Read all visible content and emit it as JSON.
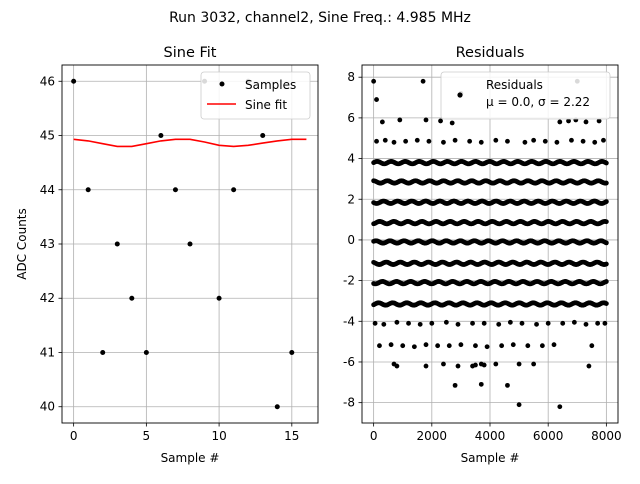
{
  "figure": {
    "suptitle": "Run 3032, channel2, Sine Freq.: 4.985 MHz"
  },
  "chart_data": [
    {
      "type": "scatter",
      "title": "Sine Fit",
      "xlabel": "Sample #",
      "ylabel": "ADC Counts",
      "xlim": [
        -0.8,
        16.8
      ],
      "ylim": [
        39.7,
        46.3
      ],
      "xticks": [
        0,
        5,
        10,
        15
      ],
      "yticks": [
        40,
        41,
        42,
        43,
        44,
        45,
        46
      ],
      "grid": true,
      "legend_position": "top-right",
      "series": [
        {
          "name": "Samples",
          "kind": "scatter",
          "color": "#000000",
          "x": [
            0,
            1,
            2,
            3,
            4,
            5,
            6,
            7,
            8,
            9,
            10,
            11,
            12,
            13,
            14,
            15
          ],
          "y": [
            46,
            44,
            41,
            43,
            42,
            41,
            45,
            44,
            43,
            46,
            42,
            44,
            46,
            45,
            40,
            41
          ]
        },
        {
          "name": "Sine fit",
          "kind": "line",
          "color": "#ff0000",
          "x": [
            0,
            1,
            2,
            3,
            4,
            5,
            6,
            7,
            8,
            9,
            10,
            11,
            12,
            13,
            14,
            15,
            16
          ],
          "y": [
            44.93,
            44.9,
            44.85,
            44.8,
            44.8,
            44.85,
            44.9,
            44.93,
            44.93,
            44.88,
            44.82,
            44.8,
            44.82,
            44.86,
            44.9,
            44.93,
            44.93
          ]
        }
      ]
    },
    {
      "type": "scatter",
      "title": "Residuals",
      "xlabel": "Sample #",
      "xlim": [
        -400,
        8400
      ],
      "ylim": [
        -9,
        8.6
      ],
      "xticks": [
        0,
        2000,
        4000,
        6000,
        8000
      ],
      "yticks": [
        -8,
        -6,
        -4,
        -2,
        0,
        2,
        4,
        6,
        8
      ],
      "grid": true,
      "legend_position": "top-right",
      "series": [
        {
          "name": "Residuals",
          "stats_label": "μ = 0.0, σ = 2.22",
          "color": "#000000",
          "bands": [
            {
              "y": 3.8,
              "x_start": 0,
              "x_end": 8000
            },
            {
              "y": 2.85,
              "x_start": 0,
              "x_end": 8000
            },
            {
              "y": 1.85,
              "x_start": 0,
              "x_end": 8000
            },
            {
              "y": 0.85,
              "x_start": 0,
              "x_end": 8000
            },
            {
              "y": -0.1,
              "x_start": 0,
              "x_end": 8000
            },
            {
              "y": -1.15,
              "x_start": 0,
              "x_end": 8000
            },
            {
              "y": -2.1,
              "x_start": 0,
              "x_end": 8000
            },
            {
              "y": -3.15,
              "x_start": 0,
              "x_end": 8000
            }
          ],
          "points": [
            [
              0,
              7.8
            ],
            [
              100,
              6.9
            ],
            [
              1700,
              7.8
            ],
            [
              3000,
              7.2
            ],
            [
              7000,
              7.8
            ],
            [
              300,
              5.8
            ],
            [
              900,
              5.9
            ],
            [
              1800,
              5.9
            ],
            [
              2300,
              5.85
            ],
            [
              2700,
              5.75
            ],
            [
              6400,
              5.8
            ],
            [
              6700,
              5.85
            ],
            [
              6950,
              5.9
            ],
            [
              7300,
              5.8
            ],
            [
              7750,
              5.85
            ],
            [
              100,
              4.85
            ],
            [
              400,
              4.9
            ],
            [
              700,
              4.8
            ],
            [
              1100,
              4.85
            ],
            [
              1500,
              4.9
            ],
            [
              1900,
              4.85
            ],
            [
              2400,
              4.8
            ],
            [
              2800,
              4.9
            ],
            [
              3300,
              4.85
            ],
            [
              3700,
              4.8
            ],
            [
              4200,
              4.9
            ],
            [
              4600,
              4.85
            ],
            [
              5200,
              4.8
            ],
            [
              5500,
              4.9
            ],
            [
              5900,
              4.85
            ],
            [
              6300,
              4.8
            ],
            [
              6800,
              4.9
            ],
            [
              7200,
              4.85
            ],
            [
              7600,
              4.8
            ],
            [
              7900,
              4.9
            ],
            [
              50,
              -4.1
            ],
            [
              350,
              -4.15
            ],
            [
              800,
              -4.05
            ],
            [
              1200,
              -4.1
            ],
            [
              1600,
              -4.15
            ],
            [
              2000,
              -4.1
            ],
            [
              2500,
              -4.05
            ],
            [
              2900,
              -4.15
            ],
            [
              3400,
              -4.1
            ],
            [
              3800,
              -4.1
            ],
            [
              4300,
              -4.15
            ],
            [
              4700,
              -4.05
            ],
            [
              5100,
              -4.1
            ],
            [
              5600,
              -4.15
            ],
            [
              6000,
              -4.1
            ],
            [
              6500,
              -4.1
            ],
            [
              6900,
              -4.05
            ],
            [
              7300,
              -4.15
            ],
            [
              7700,
              -4.1
            ],
            [
              7950,
              -4.1
            ],
            [
              200,
              -5.2
            ],
            [
              600,
              -5.15
            ],
            [
              1000,
              -5.2
            ],
            [
              1400,
              -5.25
            ],
            [
              1800,
              -5.15
            ],
            [
              2200,
              -5.2
            ],
            [
              2600,
              -5.2
            ],
            [
              3000,
              -5.15
            ],
            [
              3500,
              -5.2
            ],
            [
              3900,
              -5.25
            ],
            [
              4400,
              -5.2
            ],
            [
              4800,
              -5.15
            ],
            [
              5300,
              -5.2
            ],
            [
              5800,
              -5.2
            ],
            [
              6200,
              -5.15
            ],
            [
              7500,
              -5.2
            ],
            [
              700,
              -6.1
            ],
            [
              800,
              -6.2
            ],
            [
              1800,
              -6.2
            ],
            [
              2400,
              -6.1
            ],
            [
              2900,
              -6.2
            ],
            [
              3400,
              -6.2
            ],
            [
              3500,
              -6.15
            ],
            [
              3700,
              -6.1
            ],
            [
              3800,
              -6.15
            ],
            [
              4200,
              -6.1
            ],
            [
              5000,
              -6.1
            ],
            [
              5500,
              -6.1
            ],
            [
              7400,
              -6.2
            ],
            [
              2800,
              -7.15
            ],
            [
              3700,
              -7.1
            ],
            [
              4600,
              -7.15
            ],
            [
              5000,
              -8.1
            ],
            [
              6400,
              -8.2
            ]
          ]
        }
      ]
    }
  ]
}
